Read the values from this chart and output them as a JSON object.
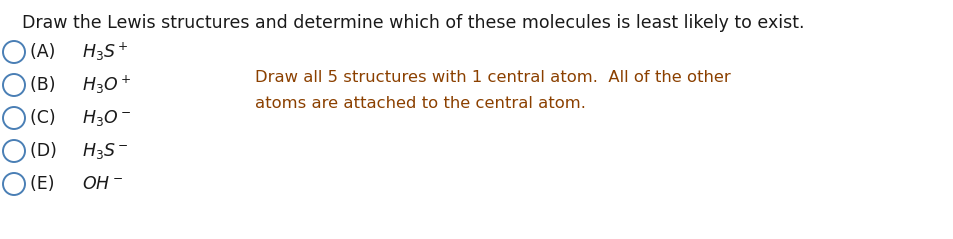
{
  "background_color": "#ffffff",
  "title": "Draw the Lewis structures and determine which of these molecules is least likely to exist.",
  "title_fontsize": 12.5,
  "title_color": "#1a1a1a",
  "options": [
    {
      "label": "(A) ",
      "formula": "$H_3S^+$"
    },
    {
      "label": "(B) ",
      "formula": "$H_3O^+$"
    },
    {
      "label": "(C) ",
      "formula": "$H_3O^-$"
    },
    {
      "label": "(D) ",
      "formula": "$H_3S^-$"
    },
    {
      "label": "(E) ",
      "formula": "$OH^-$"
    }
  ],
  "circle_color": "#4a7fb5",
  "circle_lw": 1.4,
  "option_fontsize": 12.5,
  "note_text_line1": "Draw all 5 structures with 1 central atom.  All of the other",
  "note_text_line2": "atoms are attached to the central atom.",
  "note_color": "#8B4000"
}
